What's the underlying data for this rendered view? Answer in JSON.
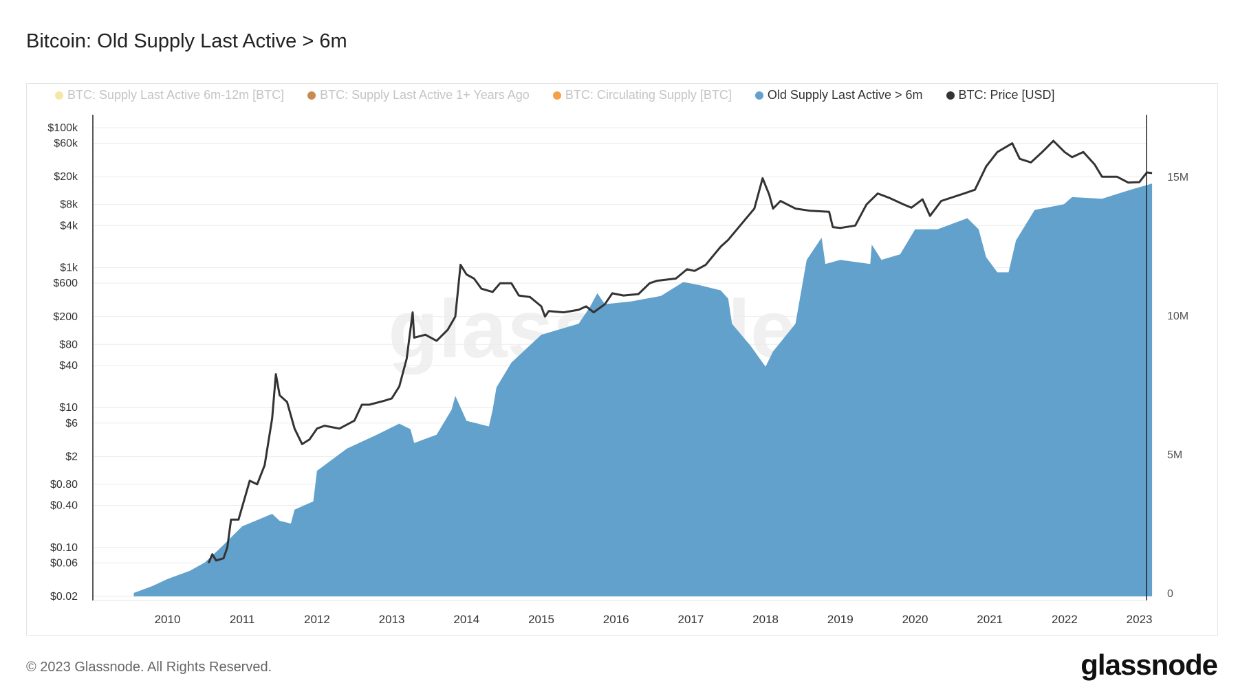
{
  "title": "Bitcoin: Old Supply Last Active > 6m",
  "legend": [
    {
      "label": "BTC: Supply Last Active 6m-12m [BTC]",
      "color": "#f6e7a2",
      "active": false
    },
    {
      "label": "BTC: Supply Last Active 1+ Years Ago",
      "color": "#c98a4e",
      "active": false
    },
    {
      "label": "BTC: Circulating Supply [BTC]",
      "color": "#f4a048",
      "active": false
    },
    {
      "label": "Old Supply Last Active > 6m",
      "color": "#62a1cc",
      "active": true
    },
    {
      "label": "BTC: Price [USD]",
      "color": "#333333",
      "active": true
    }
  ],
  "footer": "© 2023 Glassnode. All Rights Reserved.",
  "logo": "glassnode",
  "watermark": "glassnode",
  "chart_data": {
    "type": "area+line",
    "title": "Bitcoin: Old Supply Last Active > 6m",
    "x_ticks": [
      "2010",
      "2011",
      "2012",
      "2013",
      "2014",
      "2015",
      "2016",
      "2017",
      "2018",
      "2019",
      "2020",
      "2021",
      "2022",
      "2023"
    ],
    "xlim": [
      2009.0,
      2023.17
    ],
    "left_axis": {
      "scale": "log",
      "range": [
        0.02,
        100000
      ],
      "ticks": [
        {
          "v": 100000,
          "label": "$100k"
        },
        {
          "v": 60000,
          "label": "$60k"
        },
        {
          "v": 20000,
          "label": "$20k"
        },
        {
          "v": 8000,
          "label": "$8k"
        },
        {
          "v": 4000,
          "label": "$4k"
        },
        {
          "v": 1000,
          "label": "$1k"
        },
        {
          "v": 600,
          "label": "$600"
        },
        {
          "v": 200,
          "label": "$200"
        },
        {
          "v": 80,
          "label": "$80"
        },
        {
          "v": 40,
          "label": "$40"
        },
        {
          "v": 10,
          "label": "$10"
        },
        {
          "v": 6,
          "label": "$6"
        },
        {
          "v": 2,
          "label": "$2"
        },
        {
          "v": 0.8,
          "label": "$0.80"
        },
        {
          "v": 0.4,
          "label": "$0.40"
        },
        {
          "v": 0.1,
          "label": "$0.10"
        },
        {
          "v": 0.06,
          "label": "$0.06"
        },
        {
          "v": 0.02,
          "label": "$0.02"
        }
      ]
    },
    "right_axis": {
      "scale": "linear",
      "range": [
        0,
        17000000
      ],
      "ticks": [
        {
          "v": 0,
          "label": "0"
        },
        {
          "v": 5000000,
          "label": "5M"
        },
        {
          "v": 10000000,
          "label": "10M"
        },
        {
          "v": 15000000,
          "label": "15M"
        }
      ]
    },
    "grid": true,
    "legend_position": "top",
    "series": [
      {
        "name": "Old Supply Last Active > 6m",
        "axis": "right",
        "type": "area",
        "color": "#62a1cc",
        "points": [
          [
            2009.55,
            0
          ],
          [
            2009.8,
            0.25
          ],
          [
            2010.0,
            0.5
          ],
          [
            2010.3,
            0.8
          ],
          [
            2010.5,
            1.1
          ],
          [
            2010.7,
            1.6
          ],
          [
            2011.0,
            2.4
          ],
          [
            2011.4,
            2.85
          ],
          [
            2011.5,
            2.6
          ],
          [
            2011.65,
            2.5
          ],
          [
            2011.7,
            3.0
          ],
          [
            2011.95,
            3.3
          ],
          [
            2012.0,
            4.4
          ],
          [
            2012.4,
            5.2
          ],
          [
            2012.8,
            5.7
          ],
          [
            2013.1,
            6.1
          ],
          [
            2013.25,
            5.9
          ],
          [
            2013.3,
            5.4
          ],
          [
            2013.6,
            5.7
          ],
          [
            2013.8,
            6.6
          ],
          [
            2013.85,
            7.1
          ],
          [
            2013.95,
            6.5
          ],
          [
            2014.0,
            6.2
          ],
          [
            2014.3,
            6.0
          ],
          [
            2014.35,
            6.6
          ],
          [
            2014.4,
            7.4
          ],
          [
            2014.6,
            8.3
          ],
          [
            2015.0,
            9.3
          ],
          [
            2015.5,
            9.7
          ],
          [
            2015.65,
            10.3
          ],
          [
            2015.75,
            10.8
          ],
          [
            2015.85,
            10.4
          ],
          [
            2016.2,
            10.5
          ],
          [
            2016.6,
            10.7
          ],
          [
            2016.9,
            11.2
          ],
          [
            2017.1,
            11.1
          ],
          [
            2017.4,
            10.9
          ],
          [
            2017.5,
            10.6
          ],
          [
            2017.55,
            9.7
          ],
          [
            2017.8,
            8.9
          ],
          [
            2018.0,
            8.15
          ],
          [
            2018.1,
            8.7
          ],
          [
            2018.4,
            9.7
          ],
          [
            2018.55,
            12.0
          ],
          [
            2018.75,
            12.8
          ],
          [
            2018.8,
            11.85
          ],
          [
            2019.0,
            12.0
          ],
          [
            2019.4,
            11.85
          ],
          [
            2019.42,
            12.55
          ],
          [
            2019.55,
            12.0
          ],
          [
            2019.8,
            12.2
          ],
          [
            2020.0,
            13.1
          ],
          [
            2020.3,
            13.1
          ],
          [
            2020.7,
            13.5
          ],
          [
            2020.85,
            13.1
          ],
          [
            2020.95,
            12.1
          ],
          [
            2021.1,
            11.55
          ],
          [
            2021.25,
            11.55
          ],
          [
            2021.35,
            12.7
          ],
          [
            2021.6,
            13.8
          ],
          [
            2021.99,
            14.0
          ],
          [
            2022.1,
            14.26
          ],
          [
            2022.5,
            14.2
          ],
          [
            2022.85,
            14.5
          ],
          [
            2023.17,
            14.75
          ]
        ]
      },
      {
        "name": "BTC: Price [USD]",
        "axis": "left",
        "type": "line",
        "color": "#333333",
        "points": [
          [
            2010.55,
            0.06
          ],
          [
            2010.6,
            0.08
          ],
          [
            2010.65,
            0.065
          ],
          [
            2010.75,
            0.07
          ],
          [
            2010.8,
            0.1
          ],
          [
            2010.85,
            0.25
          ],
          [
            2010.95,
            0.25
          ],
          [
            2011.1,
            0.9
          ],
          [
            2011.2,
            0.8
          ],
          [
            2011.3,
            1.5
          ],
          [
            2011.4,
            7
          ],
          [
            2011.45,
            30
          ],
          [
            2011.5,
            15
          ],
          [
            2011.6,
            12
          ],
          [
            2011.7,
            5
          ],
          [
            2011.8,
            3
          ],
          [
            2011.9,
            3.5
          ],
          [
            2012.0,
            5
          ],
          [
            2012.1,
            5.5
          ],
          [
            2012.3,
            5
          ],
          [
            2012.5,
            6.5
          ],
          [
            2012.6,
            11
          ],
          [
            2012.7,
            11
          ],
          [
            2012.9,
            12.5
          ],
          [
            2013.0,
            13.5
          ],
          [
            2013.1,
            20
          ],
          [
            2013.2,
            50
          ],
          [
            2013.28,
            230
          ],
          [
            2013.3,
            100
          ],
          [
            2013.45,
            110
          ],
          [
            2013.6,
            90
          ],
          [
            2013.75,
            130
          ],
          [
            2013.85,
            200
          ],
          [
            2013.92,
            1100
          ],
          [
            2014.0,
            800
          ],
          [
            2014.1,
            700
          ],
          [
            2014.2,
            500
          ],
          [
            2014.35,
            450
          ],
          [
            2014.45,
            600
          ],
          [
            2014.6,
            600
          ],
          [
            2014.7,
            400
          ],
          [
            2014.85,
            380
          ],
          [
            2015.0,
            280
          ],
          [
            2015.05,
            200
          ],
          [
            2015.1,
            240
          ],
          [
            2015.3,
            230
          ],
          [
            2015.5,
            250
          ],
          [
            2015.6,
            280
          ],
          [
            2015.7,
            230
          ],
          [
            2015.85,
            300
          ],
          [
            2015.95,
            430
          ],
          [
            2016.1,
            400
          ],
          [
            2016.3,
            420
          ],
          [
            2016.45,
            600
          ],
          [
            2016.55,
            650
          ],
          [
            2016.8,
            700
          ],
          [
            2016.95,
            950
          ],
          [
            2017.05,
            900
          ],
          [
            2017.2,
            1100
          ],
          [
            2017.4,
            2000
          ],
          [
            2017.5,
            2500
          ],
          [
            2017.7,
            4500
          ],
          [
            2017.85,
            7000
          ],
          [
            2017.96,
            19000
          ],
          [
            2018.05,
            11000
          ],
          [
            2018.1,
            7000
          ],
          [
            2018.2,
            9000
          ],
          [
            2018.4,
            7000
          ],
          [
            2018.6,
            6500
          ],
          [
            2018.85,
            6300
          ],
          [
            2018.9,
            3800
          ],
          [
            2019.0,
            3700
          ],
          [
            2019.2,
            4000
          ],
          [
            2019.35,
            8000
          ],
          [
            2019.5,
            11500
          ],
          [
            2019.65,
            10000
          ],
          [
            2019.85,
            8000
          ],
          [
            2019.95,
            7200
          ],
          [
            2020.1,
            9500
          ],
          [
            2020.2,
            5500
          ],
          [
            2020.35,
            9000
          ],
          [
            2020.6,
            11000
          ],
          [
            2020.8,
            13000
          ],
          [
            2020.95,
            28000
          ],
          [
            2021.1,
            45000
          ],
          [
            2021.3,
            60000
          ],
          [
            2021.4,
            36000
          ],
          [
            2021.55,
            32000
          ],
          [
            2021.7,
            45000
          ],
          [
            2021.85,
            65000
          ],
          [
            2022.0,
            45000
          ],
          [
            2022.1,
            38000
          ],
          [
            2022.25,
            45000
          ],
          [
            2022.4,
            30000
          ],
          [
            2022.5,
            20000
          ],
          [
            2022.7,
            20000
          ],
          [
            2022.85,
            16500
          ],
          [
            2023.0,
            16700
          ],
          [
            2023.1,
            23000
          ],
          [
            2023.17,
            22500
          ]
        ]
      }
    ]
  }
}
